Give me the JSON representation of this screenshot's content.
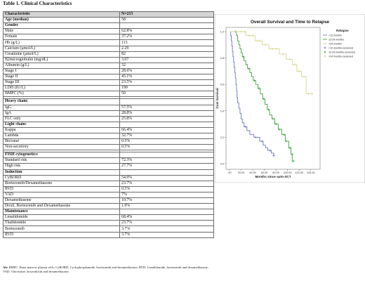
{
  "table": {
    "title": "Table 1. Clinical Characteristics",
    "header": [
      "Characteristic",
      "N=215"
    ],
    "rows": [
      {
        "label": "Age (median)",
        "value": "58",
        "kind": "section"
      },
      {
        "label": "Gender",
        "value": "",
        "kind": "section"
      },
      {
        "label": "Male",
        "value": "62.8%",
        "kind": "row"
      },
      {
        "label": "Female",
        "value": "37.2%",
        "kind": "row"
      },
      {
        "label": "Hb (g/L)",
        "value": "113",
        "kind": "row"
      },
      {
        "label": "Calcium (µmol/L)",
        "value": "2.29",
        "kind": "row"
      },
      {
        "label": "Creatinine (µmol/L)",
        "value": "82",
        "kind": "row"
      },
      {
        "label": "B2microglobulin (mg/dL)",
        "value": "3.07",
        "kind": "row"
      },
      {
        "label": "Albumin (g/L)",
        "value": "32",
        "kind": "row"
      },
      {
        "label": "Stage I",
        "value": "28.6%",
        "kind": "row"
      },
      {
        "label": "Stage II",
        "value": "45.1%",
        "kind": "row"
      },
      {
        "label": "Stage III",
        "value": "23.5%",
        "kind": "row"
      },
      {
        "label": "LDH (IU/L)",
        "value": "199",
        "kind": "row"
      },
      {
        "label": "BMPC (%)",
        "value": "50",
        "kind": "row"
      },
      {
        "label": "",
        "value": "",
        "kind": "gap"
      },
      {
        "label": "Heavy chain:",
        "value": "",
        "kind": "section"
      },
      {
        "label": "IgG",
        "value": "57.5%",
        "kind": "row"
      },
      {
        "label": "IgA",
        "value": "28.8%",
        "kind": "row"
      },
      {
        "label": "FLC only",
        "value": "25.8%",
        "kind": "row"
      },
      {
        "label": "Light chain:",
        "value": "",
        "kind": "section"
      },
      {
        "label": "Kappa",
        "value": "66.4%",
        "kind": "row"
      },
      {
        "label": "Lambda",
        "value": "32.7%",
        "kind": "row"
      },
      {
        "label": "Biclonal",
        "value": "0.5%",
        "kind": "row"
      },
      {
        "label": "Non-secretory",
        "value": "0.5%",
        "kind": "row"
      },
      {
        "label": "",
        "value": "",
        "kind": "gap"
      },
      {
        "label": "FISH cytogenetics:",
        "value": "",
        "kind": "section"
      },
      {
        "label": "Standard risk",
        "value": "72.3%",
        "kind": "row"
      },
      {
        "label": "High risk",
        "value": "27.7%",
        "kind": "row"
      },
      {
        "label": "Induction",
        "value": "",
        "kind": "section"
      },
      {
        "label": "CyBORD",
        "value": "54.9%",
        "kind": "row"
      },
      {
        "label": "Bortezomib/Dexamethasone",
        "value": "23.7%",
        "kind": "row"
      },
      {
        "label": "RVD",
        "value": "0.5%",
        "kind": "row"
      },
      {
        "label": "VAD",
        "value": "7%",
        "kind": "row"
      },
      {
        "label": "Dexamethasone",
        "value": "10.7%",
        "kind": "row"
      },
      {
        "label": "Doxil, Bortezomib and Dexamethasone",
        "value": "1.9%",
        "kind": "row"
      },
      {
        "label": "Maintenance",
        "value": "",
        "kind": "section"
      },
      {
        "label": "Lenalidomide",
        "value": "68.4%",
        "kind": "row"
      },
      {
        "label": "Thalidomide",
        "value": "23.7%",
        "kind": "row"
      },
      {
        "label": "Bortezomib",
        "value": "3.7%",
        "kind": "row"
      },
      {
        "label": "RVD",
        "value": "3.7%",
        "kind": "row"
      }
    ]
  },
  "abbreviations": {
    "prefix": "Ab:",
    "text": "BMPC: Bone marrow plasma cells; CyBORD: Cyclophosphamide, bortezomib and dexamethasone; RVD: Lenalidomide, bortezomib and dexamethasone; VAD: Vincristine, doxorubicin and dexamethasone."
  },
  "chart_data": {
    "type": "line",
    "title": "Overall Survival and Time to Relapse",
    "xlabel": "Months since auto-SCT",
    "ylabel": "Cum Survival",
    "xlim": [
      0,
      150
    ],
    "ylim": [
      0,
      1
    ],
    "xticks": [
      ".00",
      "20.00",
      "40.00",
      "60.00",
      "80.00",
      "100.00",
      "120.00",
      "140.00"
    ],
    "xtick_values": [
      0,
      20,
      40,
      60,
      80,
      100,
      120,
      140
    ],
    "yticks": [
      "0.0",
      "0.2",
      "0.4",
      "0.6",
      "0.8",
      "1.0"
    ],
    "ytick_values": [
      0,
      0.2,
      0.4,
      0.6,
      0.8,
      1.0
    ],
    "legend_title": "Relapse",
    "legend_position": "right",
    "legend_items": [
      {
        "label": "<12 months",
        "color": "#6b74c9",
        "marker": "line"
      },
      {
        "label": "12-24 months",
        "color": "#3aa33a",
        "marker": "line"
      },
      {
        "label": ">24 months",
        "color": "#d6d690",
        "marker": "line"
      },
      {
        "label": "<12 months-censored",
        "color": "#6b74c9",
        "marker": "plus"
      },
      {
        "label": "12-24 months-censored",
        "color": "#3aa33a",
        "marker": "plus"
      },
      {
        "label": ">24 months-censored",
        "color": "#d6d690",
        "marker": "plus"
      }
    ],
    "series": [
      {
        "name": "<12 months",
        "color": "#6b74c9",
        "steps": [
          [
            0,
            1.0
          ],
          [
            2,
            0.97
          ],
          [
            3,
            0.93
          ],
          [
            4,
            0.89
          ],
          [
            5,
            0.85
          ],
          [
            6,
            0.81
          ],
          [
            7,
            0.77
          ],
          [
            8,
            0.73
          ],
          [
            9,
            0.69
          ],
          [
            10,
            0.65
          ],
          [
            11,
            0.6
          ],
          [
            12,
            0.55
          ],
          [
            13,
            0.5
          ],
          [
            14,
            0.46
          ],
          [
            16,
            0.42
          ],
          [
            18,
            0.38
          ],
          [
            20,
            0.34
          ],
          [
            22,
            0.31
          ],
          [
            25,
            0.28
          ],
          [
            30,
            0.25
          ],
          [
            35,
            0.22
          ],
          [
            42,
            0.2
          ],
          [
            52,
            0.17
          ],
          [
            58,
            0.14
          ],
          [
            62,
            0.12
          ],
          [
            66,
            0.1
          ],
          [
            72,
            0.08
          ],
          [
            76,
            0.06
          ]
        ],
        "end_x": 78,
        "censored": [
          [
            27,
            0.28
          ],
          [
            45,
            0.2
          ],
          [
            56,
            0.17
          ],
          [
            70,
            0.1
          ],
          [
            76,
            0.06
          ]
        ]
      },
      {
        "name": "12-24 months",
        "color": "#3aa33a",
        "steps": [
          [
            0,
            1.0
          ],
          [
            12,
            0.97
          ],
          [
            14,
            0.93
          ],
          [
            16,
            0.9
          ],
          [
            18,
            0.87
          ],
          [
            20,
            0.84
          ],
          [
            22,
            0.81
          ],
          [
            25,
            0.78
          ],
          [
            28,
            0.75
          ],
          [
            31,
            0.72
          ],
          [
            35,
            0.69
          ],
          [
            38,
            0.66
          ],
          [
            41,
            0.63
          ],
          [
            45,
            0.6
          ],
          [
            49,
            0.57
          ],
          [
            53,
            0.53
          ],
          [
            57,
            0.49
          ],
          [
            61,
            0.45
          ],
          [
            65,
            0.41
          ],
          [
            69,
            0.37
          ],
          [
            73,
            0.34
          ],
          [
            78,
            0.3
          ],
          [
            84,
            0.26
          ],
          [
            90,
            0.22
          ],
          [
            96,
            0.17
          ],
          [
            102,
            0.12
          ],
          [
            106,
            0.07
          ],
          [
            108,
            0.02
          ]
        ],
        "end_x": 110,
        "censored": [
          [
            10,
            1.0
          ],
          [
            24,
            0.81
          ],
          [
            33,
            0.72
          ],
          [
            43,
            0.63
          ],
          [
            51,
            0.57
          ],
          [
            59,
            0.49
          ],
          [
            67,
            0.41
          ],
          [
            75,
            0.34
          ],
          [
            80,
            0.3
          ],
          [
            86,
            0.26
          ],
          [
            94,
            0.22
          ],
          [
            98,
            0.17
          ],
          [
            104,
            0.12
          ],
          [
            108,
            0.07
          ],
          [
            110,
            0.02
          ]
        ]
      },
      {
        "name": ">24 months",
        "color": "#d6d690",
        "steps": [
          [
            0,
            1.0
          ],
          [
            28,
            0.97
          ],
          [
            44,
            0.93
          ],
          [
            56,
            0.9
          ],
          [
            68,
            0.87
          ],
          [
            86,
            0.83
          ],
          [
            98,
            0.79
          ],
          [
            108,
            0.75
          ],
          [
            116,
            0.7
          ],
          [
            124,
            0.66
          ],
          [
            132,
            0.53
          ]
        ],
        "end_x": 142,
        "censored": [
          [
            12,
            1.0
          ],
          [
            20,
            1.0
          ],
          [
            26,
            1.0
          ],
          [
            34,
            0.97
          ],
          [
            40,
            0.97
          ],
          [
            48,
            0.93
          ],
          [
            52,
            0.93
          ],
          [
            62,
            0.9
          ],
          [
            74,
            0.87
          ],
          [
            80,
            0.87
          ],
          [
            92,
            0.83
          ],
          [
            104,
            0.79
          ],
          [
            112,
            0.75
          ],
          [
            120,
            0.7
          ],
          [
            128,
            0.66
          ],
          [
            136,
            0.53
          ],
          [
            142,
            0.53
          ]
        ]
      }
    ]
  }
}
